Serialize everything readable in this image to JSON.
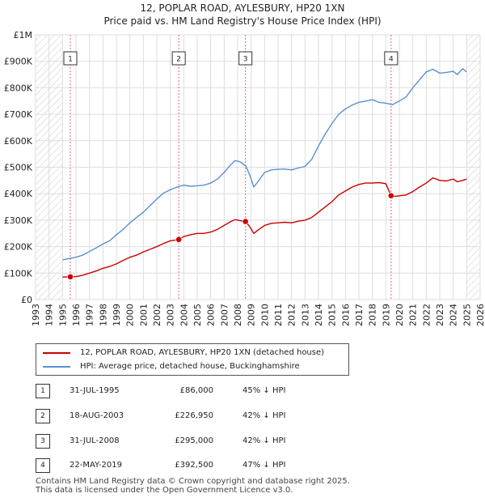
{
  "title": "12, POPLAR ROAD, AYLESBURY, HP20 1XN",
  "subtitle": "Price paid vs. HM Land Registry's House Price Index (HPI)",
  "colors": {
    "property": "#cc0000",
    "hpi": "#5a8fd0",
    "marker_line": "#e06080",
    "hatch": "#c8c8c8"
  },
  "chart_data": {
    "type": "line",
    "xlim": [
      1993,
      2026
    ],
    "ylim": [
      0,
      1000000
    ],
    "ytick_labels": [
      "£0",
      "£100K",
      "£200K",
      "£300K",
      "£400K",
      "£500K",
      "£600K",
      "£700K",
      "£800K",
      "£900K",
      "£1M"
    ],
    "ytick_values": [
      0,
      100000,
      200000,
      300000,
      400000,
      500000,
      600000,
      700000,
      800000,
      900000,
      1000000
    ],
    "xtick_labels": [
      "1993",
      "1994",
      "1995",
      "1996",
      "1997",
      "1998",
      "1999",
      "2000",
      "2001",
      "2002",
      "2003",
      "2004",
      "2005",
      "2006",
      "2007",
      "2008",
      "2009",
      "2010",
      "2011",
      "2012",
      "2013",
      "2014",
      "2015",
      "2016",
      "2017",
      "2018",
      "2019",
      "2020",
      "2021",
      "2022",
      "2023",
      "2024",
      "2025",
      "2026"
    ],
    "xtick_values": [
      1993,
      1994,
      1995,
      1996,
      1997,
      1998,
      1999,
      2000,
      2001,
      2002,
      2003,
      2004,
      2005,
      2006,
      2007,
      2008,
      2009,
      2010,
      2011,
      2012,
      2013,
      2014,
      2015,
      2016,
      2017,
      2018,
      2019,
      2020,
      2021,
      2022,
      2023,
      2024,
      2025,
      2026
    ],
    "hatch_ranges": [
      [
        1993,
        1995.0
      ],
      [
        2025.0,
        2026
      ]
    ],
    "series": [
      {
        "name": "12, POPLAR ROAD, AYLESBURY, HP20 1XN (detached house)",
        "x": [
          1995.0,
          1995.58,
          1996,
          1996.5,
          1997,
          1997.5,
          1998,
          1998.5,
          1999,
          1999.5,
          2000,
          2000.5,
          2001,
          2001.5,
          2002,
          2002.5,
          2003,
          2003.63,
          2004,
          2004.5,
          2005,
          2005.5,
          2006,
          2006.5,
          2007,
          2007.5,
          2007.8,
          2008.2,
          2008.58,
          2008.9,
          2009.2,
          2009.5,
          2010,
          2010.5,
          2011,
          2011.5,
          2012,
          2012.5,
          2013,
          2013.5,
          2014,
          2014.5,
          2015,
          2015.5,
          2016,
          2016.5,
          2017,
          2017.5,
          2018,
          2018.5,
          2019.0,
          2019.39,
          2019.7,
          2020,
          2020.5,
          2021,
          2021.5,
          2022,
          2022.5,
          2023,
          2023.5,
          2024,
          2024.3,
          2024.7,
          2025.0
        ],
        "values": [
          85000,
          86000,
          87000,
          92000,
          100000,
          108000,
          118000,
          125000,
          135000,
          148000,
          160000,
          168000,
          180000,
          190000,
          200000,
          212000,
          222000,
          226950,
          238000,
          245000,
          250000,
          250000,
          255000,
          265000,
          280000,
          295000,
          302000,
          298000,
          295000,
          275000,
          250000,
          262000,
          280000,
          288000,
          290000,
          292000,
          290000,
          296000,
          300000,
          310000,
          330000,
          350000,
          370000,
          395000,
          410000,
          425000,
          435000,
          440000,
          440000,
          442000,
          438000,
          392500,
          390000,
          392000,
          395000,
          408000,
          425000,
          440000,
          460000,
          450000,
          448000,
          455000,
          445000,
          450000,
          455000
        ]
      },
      {
        "name": "HPI: Average price, detached house, Buckinghamshire",
        "x": [
          1995.0,
          1995.5,
          1996,
          1996.5,
          1997,
          1997.5,
          1998,
          1998.5,
          1999,
          1999.5,
          2000,
          2000.5,
          2001,
          2001.5,
          2002,
          2002.5,
          2003,
          2003.5,
          2004,
          2004.5,
          2005,
          2005.5,
          2006,
          2006.5,
          2007,
          2007.5,
          2007.8,
          2008.2,
          2008.6,
          2008.9,
          2009.2,
          2009.5,
          2010,
          2010.5,
          2011,
          2011.5,
          2012,
          2012.5,
          2013,
          2013.5,
          2014,
          2014.5,
          2015,
          2015.5,
          2016,
          2016.5,
          2017,
          2017.5,
          2018,
          2018.5,
          2019,
          2019.5,
          2020,
          2020.5,
          2021,
          2021.5,
          2022,
          2022.5,
          2023,
          2023.5,
          2024,
          2024.3,
          2024.7,
          2025.0
        ],
        "values": [
          150000,
          155000,
          160000,
          168000,
          182000,
          195000,
          210000,
          222000,
          245000,
          265000,
          290000,
          310000,
          330000,
          355000,
          380000,
          402000,
          415000,
          425000,
          432000,
          428000,
          430000,
          432000,
          440000,
          455000,
          480000,
          510000,
          525000,
          520000,
          505000,
          470000,
          425000,
          445000,
          480000,
          490000,
          492000,
          493000,
          490000,
          497000,
          503000,
          530000,
          580000,
          625000,
          665000,
          700000,
          720000,
          735000,
          745000,
          750000,
          755000,
          745000,
          742000,
          736000,
          750000,
          765000,
          800000,
          830000,
          860000,
          870000,
          855000,
          858000,
          862000,
          850000,
          872000,
          860000
        ]
      }
    ],
    "sales": [
      {
        "n": "1",
        "x": 1995.58,
        "price": 86000
      },
      {
        "n": "2",
        "x": 2003.63,
        "price": 226950
      },
      {
        "n": "3",
        "x": 2008.58,
        "price": 295000
      },
      {
        "n": "4",
        "x": 2019.39,
        "price": 392500
      }
    ]
  },
  "legend": {
    "property_label": "12, POPLAR ROAD, AYLESBURY, HP20 1XN (detached house)",
    "hpi_label": "HPI: Average price, detached house, Buckinghamshire"
  },
  "sales_table": [
    {
      "num": "1",
      "date": "31-JUL-1995",
      "price": "£86,000",
      "hpi": "45% ↓ HPI"
    },
    {
      "num": "2",
      "date": "18-AUG-2003",
      "price": "£226,950",
      "hpi": "42% ↓ HPI"
    },
    {
      "num": "3",
      "date": "31-JUL-2008",
      "price": "£295,000",
      "hpi": "42% ↓ HPI"
    },
    {
      "num": "4",
      "date": "22-MAY-2019",
      "price": "£392,500",
      "hpi": "47% ↓ HPI"
    }
  ],
  "footer": {
    "line1": "Contains HM Land Registry data © Crown copyright and database right 2025.",
    "line2": "This data is licensed under the Open Government Licence v3.0."
  }
}
